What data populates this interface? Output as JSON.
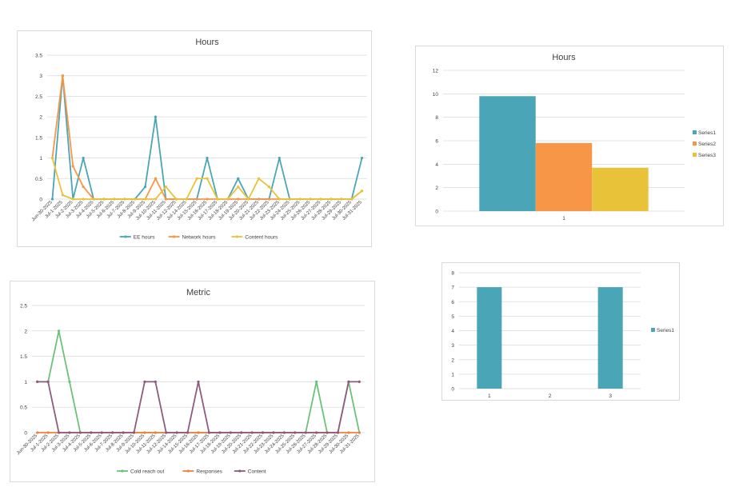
{
  "colors": {
    "teal": "#4AA6B7",
    "orange": "#F79646",
    "yellow": "#E8C33A",
    "green": "#6CC27A",
    "orange2": "#F0803C",
    "purple": "#8E5A7D",
    "grid": "#d9d9d9",
    "text": "#404040"
  },
  "chart_data": [
    {
      "id": "hours-line",
      "type": "line",
      "title": "Hours",
      "ylim": [
        0,
        3.5
      ],
      "yticks": [
        0,
        0.5,
        1,
        1.5,
        2,
        2.5,
        3,
        3.5
      ],
      "grid": true,
      "legend": "bottom",
      "categories": [
        "Jun-30-2025",
        "Jul-1-2025",
        "Jul-2-2025",
        "Jul-3-2025",
        "Jul-4-2025",
        "Jul-5-2025",
        "Jul-6-2025",
        "Jul-7-2025",
        "Jul-8-2025",
        "Jul-9-2025",
        "Jul-10-2025",
        "Jul-11-2025",
        "Jul-12-2025",
        "Jul-14-2025",
        "Jul-15-2025",
        "Jul-16-2025",
        "Jul-17-2025",
        "Jul-18-2025",
        "Jul-19-2025",
        "Jul-20-2025",
        "Jul-21-2025",
        "Jul-22-2025",
        "Jul-23-2025",
        "Jul-24-2025",
        "Jul-25-2025",
        "Jul-26-2025",
        "Jul-27-2025",
        "Jul-28-2025",
        "Jul-29-2025",
        "Jul-30-2025",
        "Jul-31-2025"
      ],
      "series": [
        {
          "name": "EE hours",
          "color": "teal",
          "values": [
            0,
            3,
            0,
            1,
            0,
            0,
            0,
            0,
            0,
            0.3,
            2,
            0,
            0,
            0,
            0,
            1,
            0,
            0,
            0.5,
            0,
            0,
            0,
            1,
            0,
            0,
            0,
            0,
            0,
            0,
            0,
            1
          ]
        },
        {
          "name": "Network hours",
          "color": "orange",
          "values": [
            1,
            3,
            0.8,
            0.3,
            0,
            0,
            0,
            0,
            0,
            0,
            0.5,
            0,
            0,
            0,
            0,
            0,
            0,
            0,
            0,
            0,
            0,
            0,
            0,
            0,
            0,
            0,
            0,
            0,
            0,
            0,
            0.2
          ]
        },
        {
          "name": "Content hours",
          "color": "yellow",
          "values": [
            1,
            0.1,
            0,
            0,
            0,
            0,
            0,
            0,
            0,
            0,
            0,
            0.3,
            0,
            0,
            0.5,
            0.5,
            0,
            0,
            0.3,
            0,
            0.5,
            0.3,
            0,
            0,
            0,
            0,
            0,
            0,
            0,
            0,
            0.2
          ]
        }
      ]
    },
    {
      "id": "hours-bar",
      "type": "bar",
      "title": "Hours",
      "ylim": [
        0,
        12
      ],
      "yticks": [
        0,
        2,
        4,
        6,
        8,
        10,
        12
      ],
      "grid": true,
      "legend": "right",
      "categories": [
        "1"
      ],
      "series": [
        {
          "name": "Series1",
          "color": "teal",
          "values": [
            9.8
          ]
        },
        {
          "name": "Series2",
          "color": "orange",
          "values": [
            5.8
          ]
        },
        {
          "name": "Series3",
          "color": "yellow",
          "values": [
            3.7
          ]
        }
      ]
    },
    {
      "id": "metric-line",
      "type": "line",
      "title": "Metric",
      "ylim": [
        0,
        2.5
      ],
      "yticks": [
        0,
        0.5,
        1,
        1.5,
        2,
        2.5
      ],
      "grid": true,
      "legend": "bottom",
      "categories": [
        "Jun-30-2025",
        "Jul-1-2025",
        "Jul-2-2025",
        "Jul-3-2025",
        "Jul-4-2025",
        "Jul-5-2025",
        "Jul-6-2025",
        "Jul-7-2025",
        "Jul-8-2025",
        "Jul-9-2025",
        "Jul-10-2025",
        "Jul-11-2025",
        "Jul-12-2025",
        "Jul-14-2025",
        "Jul-15-2025",
        "Jul-16-2025",
        "Jul-17-2025",
        "Jul-18-2025",
        "Jul-19-2025",
        "Jul-20-2025",
        "Jul-21-2025",
        "Jul-22-2025",
        "Jul-23-2025",
        "Jul-24-2025",
        "Jul-25-2025",
        "Jul-26-2025",
        "Jul-27-2025",
        "Jul-28-2025",
        "Jul-29-2025",
        "Jul-30-2025",
        "Jul-31-2025"
      ],
      "series": [
        {
          "name": "Cold reach out",
          "color": "green",
          "values": [
            1,
            1,
            2,
            1,
            0,
            0,
            0,
            0,
            0,
            0,
            0,
            0,
            0,
            0,
            0,
            0,
            0,
            0,
            0,
            0,
            0,
            0,
            0,
            0,
            0,
            0,
            1,
            0,
            0,
            1,
            0
          ]
        },
        {
          "name": "Responses",
          "color": "orange2",
          "values": [
            0,
            0,
            0,
            0,
            0,
            0,
            0,
            0,
            0,
            0,
            0,
            0,
            0,
            0,
            0,
            0,
            0,
            0,
            0,
            0,
            0,
            0,
            0,
            0,
            0,
            0,
            0,
            0,
            0,
            0,
            0
          ]
        },
        {
          "name": "Content",
          "color": "purple",
          "values": [
            1,
            1,
            0,
            0,
            0,
            0,
            0,
            0,
            0,
            0,
            1,
            1,
            0,
            0,
            0,
            1,
            0,
            0,
            0,
            0,
            0,
            0,
            0,
            0,
            0,
            0,
            0,
            0,
            0,
            1,
            1
          ]
        }
      ]
    },
    {
      "id": "small-bar",
      "type": "bar",
      "title": "",
      "ylim": [
        0,
        8
      ],
      "yticks": [
        0,
        1,
        2,
        3,
        4,
        5,
        6,
        7,
        8
      ],
      "grid": true,
      "legend": "right",
      "categories": [
        "1",
        "2",
        "3"
      ],
      "series": [
        {
          "name": "Series1",
          "color": "teal",
          "values": [
            7,
            0,
            7
          ]
        }
      ]
    }
  ]
}
